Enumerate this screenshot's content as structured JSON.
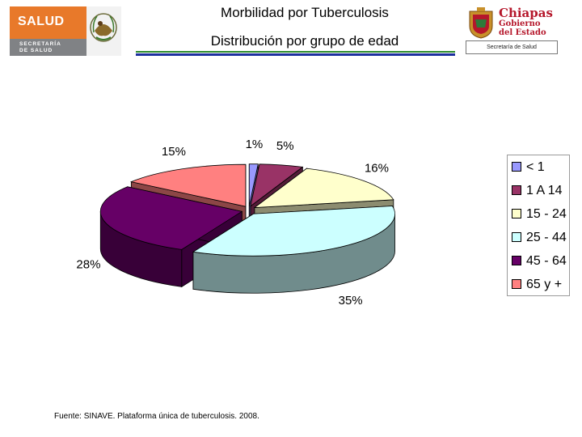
{
  "header": {
    "title": "Morbilidad por Tuberculosis",
    "subtitle": "Distribución por grupo de edad"
  },
  "logo_left": {
    "name": "SALUD",
    "line1": "SECRETARÍA",
    "line2": "DE SALUD",
    "colors": {
      "orange": "#e8792a",
      "grey": "#808285"
    }
  },
  "logo_right": {
    "line1": "Chiapas",
    "line2": "Gobierno",
    "line3": "del Estado",
    "caption": "Secretaría de Salud",
    "color": "#b5172b"
  },
  "chart_data": {
    "type": "pie",
    "style": "3d-exploded",
    "categories": [
      "< 1",
      "1 A 14",
      "15 - 24",
      "25 - 44",
      "45 - 64",
      "65 y +"
    ],
    "values": [
      1,
      5,
      16,
      35,
      28,
      15
    ],
    "labels": [
      "1%",
      "5%",
      "16%",
      "35%",
      "28%",
      "15%"
    ],
    "colors": [
      "#9999ff",
      "#993366",
      "#ffffcc",
      "#ccffff",
      "#660066",
      "#ff8080"
    ],
    "legend_position": "right"
  },
  "footer": {
    "source": "Fuente: SINAVE. Plataforma única de tuberculosis. 2008."
  }
}
